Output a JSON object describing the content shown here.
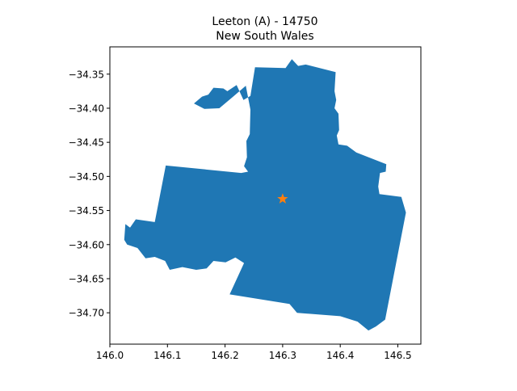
{
  "map": {
    "title_line1": "Leeton (A) - 14750",
    "title_line2": "New South Wales",
    "fill_color": "#1f77b4",
    "marker_color": "#ff7f0e",
    "marker_symbol": "star",
    "centroid": {
      "lon": 146.3,
      "lat": -34.533
    },
    "xlim": [
      146.0,
      146.54
    ],
    "ylim": [
      -34.746,
      -34.31
    ],
    "x_ticks": [
      "146.0",
      "146.1",
      "146.2",
      "146.3",
      "146.4",
      "146.5"
    ],
    "y_ticks": [
      "−34.35",
      "−34.40",
      "−34.45",
      "−34.50",
      "−34.55",
      "−34.60",
      "−34.65",
      "−34.70"
    ],
    "outline": [
      [
        146.236,
        -34.367
      ],
      [
        146.244,
        -34.402
      ],
      [
        146.243,
        -34.438
      ],
      [
        146.237,
        -34.448
      ],
      [
        146.238,
        -34.472
      ],
      [
        146.233,
        -34.485
      ],
      [
        146.24,
        -34.493
      ],
      [
        146.228,
        -34.495
      ],
      [
        146.097,
        -34.484
      ],
      [
        146.078,
        -34.567
      ],
      [
        146.045,
        -34.563
      ],
      [
        146.035,
        -34.575
      ],
      [
        146.027,
        -34.57
      ],
      [
        146.025,
        -34.593
      ],
      [
        146.03,
        -34.6
      ],
      [
        146.048,
        -34.605
      ],
      [
        146.062,
        -34.62
      ],
      [
        146.078,
        -34.618
      ],
      [
        146.096,
        -34.624
      ],
      [
        146.104,
        -34.637
      ],
      [
        146.126,
        -34.633
      ],
      [
        146.15,
        -34.637
      ],
      [
        146.168,
        -34.635
      ],
      [
        146.18,
        -34.624
      ],
      [
        146.201,
        -34.626
      ],
      [
        146.218,
        -34.619
      ],
      [
        146.233,
        -34.627
      ],
      [
        146.208,
        -34.673
      ],
      [
        146.312,
        -34.687
      ],
      [
        146.325,
        -34.7
      ],
      [
        146.4,
        -34.705
      ],
      [
        146.43,
        -34.713
      ],
      [
        146.449,
        -34.726
      ],
      [
        146.462,
        -34.72
      ],
      [
        146.478,
        -34.71
      ],
      [
        146.514,
        -34.553
      ],
      [
        146.506,
        -34.53
      ],
      [
        146.468,
        -34.526
      ],
      [
        146.466,
        -34.515
      ],
      [
        146.469,
        -34.495
      ],
      [
        146.479,
        -34.493
      ],
      [
        146.48,
        -34.482
      ],
      [
        146.428,
        -34.465
      ],
      [
        146.412,
        -34.455
      ],
      [
        146.397,
        -34.453
      ],
      [
        146.394,
        -34.44
      ],
      [
        146.398,
        -34.432
      ],
      [
        146.397,
        -34.408
      ],
      [
        146.39,
        -34.4
      ],
      [
        146.393,
        -34.388
      ],
      [
        146.39,
        -34.375
      ],
      [
        146.392,
        -34.347
      ],
      [
        146.34,
        -34.336
      ],
      [
        146.327,
        -34.338
      ],
      [
        146.316,
        -34.328
      ],
      [
        146.305,
        -34.341
      ],
      [
        146.252,
        -34.34
      ],
      [
        146.244,
        -34.382
      ],
      [
        146.232,
        -34.388
      ],
      [
        146.22,
        -34.366
      ],
      [
        146.204,
        -34.375
      ],
      [
        146.197,
        -34.371
      ],
      [
        146.18,
        -34.37
      ],
      [
        146.171,
        -34.38
      ],
      [
        146.16,
        -34.383
      ],
      [
        146.146,
        -34.393
      ],
      [
        146.164,
        -34.401
      ],
      [
        146.19,
        -34.4
      ],
      [
        146.214,
        -34.383
      ],
      [
        146.236,
        -34.367
      ]
    ]
  }
}
